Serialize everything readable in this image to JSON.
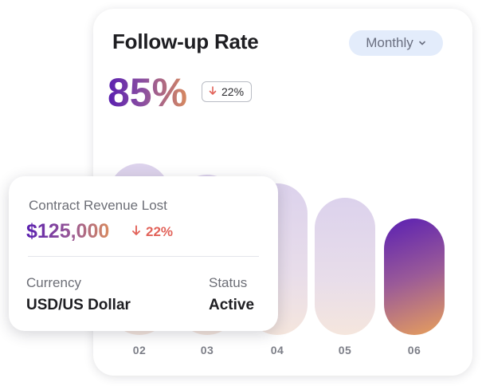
{
  "card": {
    "title": "Follow-up Rate",
    "period_selector": "Monthly",
    "value": "85%",
    "delta": "22%",
    "colors": {
      "gradient_start": "#5a1fb0",
      "gradient_end": "#d7895f",
      "delta_down": "#e2635a"
    }
  },
  "bars": {
    "labels": [
      "02",
      "03",
      "04",
      "05",
      "06"
    ],
    "active_label": "06"
  },
  "popup": {
    "label": "Contract Revenue Lost",
    "amount": "$125,000",
    "delta": "22%",
    "currency_label": "Currency",
    "currency_value": "USD/US Dollar",
    "status_label": "Status",
    "status_value": "Active"
  }
}
